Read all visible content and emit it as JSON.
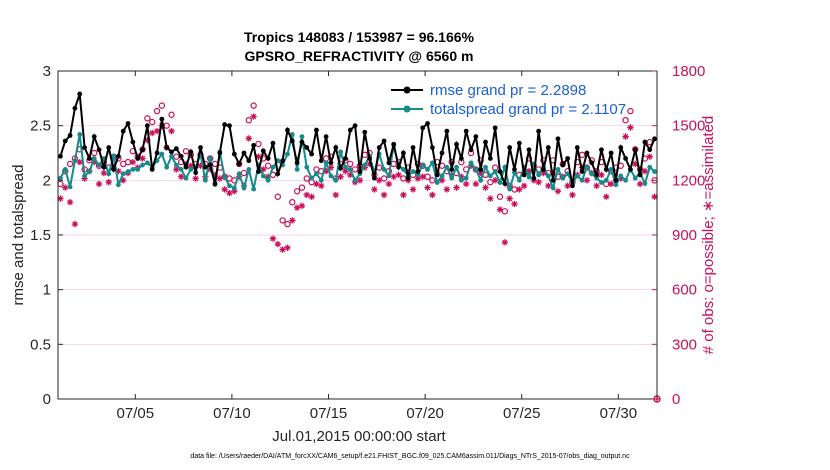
{
  "chart_data": {
    "type": "line",
    "title_line1": "Tropics 148083 / 153987 = 96.166%",
    "title_line2": "GPSRO_REFRACTIVITY @ 6560 m",
    "xlabel": "Jul.01,2015 00:00:00 start",
    "ylabel_left": "rmse and totalspread",
    "ylabel_right": "# of obs: o=possible; ∗=assimilated",
    "xlim": [
      1,
      32
    ],
    "ylim_left": [
      0,
      3
    ],
    "ylim_right": [
      0,
      1800
    ],
    "x_ticks": [
      {
        "value": 5,
        "label": "07/05"
      },
      {
        "value": 10,
        "label": "07/10"
      },
      {
        "value": 15,
        "label": "07/15"
      },
      {
        "value": 20,
        "label": "07/20"
      },
      {
        "value": 25,
        "label": "07/25"
      },
      {
        "value": 30,
        "label": "07/30"
      }
    ],
    "y_ticks_left": [
      "0",
      "0.5",
      "1",
      "1.5",
      "2",
      "2.5",
      "3"
    ],
    "y_ticks_right": [
      "0",
      "300",
      "600",
      "900",
      "1200",
      "1500",
      "1800"
    ],
    "legend": [
      {
        "name": "rmse grand pr = 2.2898",
        "color": "#000000"
      },
      {
        "name": "totalspread grand pr = 2.1107",
        "color": "#158c8c"
      }
    ],
    "footnote": "data file: /Users/raeder/DAI/ATM_forcXX/CAM6_setup/f.e21.FHIST_BGC.f09_025.CAM6assim.011/Diags_NTrS_2015-07/obs_diag_output.nc",
    "series": {
      "time": [
        1.125,
        1.375,
        1.625,
        1.875,
        2.125,
        2.375,
        2.625,
        2.875,
        3.125,
        3.375,
        3.625,
        3.875,
        4.125,
        4.375,
        4.625,
        4.875,
        5.125,
        5.375,
        5.625,
        5.875,
        6.125,
        6.375,
        6.625,
        6.875,
        7.125,
        7.375,
        7.625,
        7.875,
        8.125,
        8.375,
        8.625,
        8.875,
        9.125,
        9.375,
        9.625,
        9.875,
        10.125,
        10.375,
        10.625,
        10.875,
        11.125,
        11.375,
        11.625,
        11.875,
        12.125,
        12.375,
        12.625,
        12.875,
        13.125,
        13.375,
        13.625,
        13.875,
        14.125,
        14.375,
        14.625,
        14.875,
        15.125,
        15.375,
        15.625,
        15.875,
        16.125,
        16.375,
        16.625,
        16.875,
        17.125,
        17.375,
        17.625,
        17.875,
        18.125,
        18.375,
        18.625,
        18.875,
        19.125,
        19.375,
        19.625,
        19.875,
        20.125,
        20.375,
        20.625,
        20.875,
        21.125,
        21.375,
        21.625,
        21.875,
        22.125,
        22.375,
        22.625,
        22.875,
        23.125,
        23.375,
        23.625,
        23.875,
        24.125,
        24.375,
        24.625,
        24.875,
        25.125,
        25.375,
        25.625,
        25.875,
        26.125,
        26.375,
        26.625,
        26.875,
        27.125,
        27.375,
        27.625,
        27.875,
        28.125,
        28.375,
        28.625,
        28.875,
        29.125,
        29.375,
        29.625,
        29.875,
        30.125,
        30.375,
        30.625,
        30.875,
        31.125,
        31.375,
        31.625,
        31.875
      ],
      "rmse": [
        2.22,
        2.36,
        2.41,
        2.66,
        2.79,
        2.3,
        2.2,
        2.4,
        2.28,
        2.12,
        2.3,
        2.1,
        2.22,
        2.45,
        2.52,
        2.35,
        2.2,
        2.28,
        2.5,
        2.1,
        2.25,
        2.56,
        2.3,
        2.26,
        2.29,
        2.22,
        2.12,
        2.26,
        2.07,
        2.3,
        2.12,
        2.14,
        1.97,
        2.25,
        2.51,
        2.5,
        2.24,
        2.15,
        2.25,
        2.18,
        2.32,
        2.08,
        2.27,
        2.2,
        2.34,
        2.06,
        2.18,
        2.46,
        2.36,
        2.16,
        2.35,
        2.3,
        2.24,
        2.46,
        2.18,
        2.4,
        2.16,
        2.3,
        2.11,
        2.2,
        2.46,
        2.5,
        2.08,
        2.44,
        2.2,
        2.02,
        2.3,
        2.36,
        2.16,
        2.33,
        2.12,
        2.25,
        2.02,
        2.3,
        2.08,
        2.48,
        2.52,
        2.3,
        2.05,
        2.25,
        2.45,
        2.1,
        2.33,
        2.2,
        2.45,
        2.28,
        2.4,
        2.1,
        2.35,
        2.2,
        2.48,
        2.08,
        1.97,
        2.3,
        2.1,
        2.34,
        2.05,
        2.28,
        2.02,
        2.45,
        2.1,
        2.3,
        2.0,
        2.38,
        2.14,
        2.2,
        1.95,
        2.3,
        2.08,
        2.25,
        2.16,
        2.05,
        2.28,
        2.1,
        2.25,
        2.0,
        2.3,
        2.2,
        2.1,
        2.28,
        2.05,
        2.35,
        2.28,
        2.38,
        2.24,
        2.3
      ],
      "spread": [
        2.02,
        2.1,
        1.94,
        2.18,
        2.42,
        2.04,
        2.08,
        2.2,
        2.14,
        2.2,
        2.06,
        2.22,
        1.96,
        2.06,
        2.08,
        2.1,
        2.1,
        2.14,
        2.16,
        2.12,
        2.18,
        2.24,
        2.12,
        2.22,
        2.14,
        2.1,
        2.02,
        2.1,
        2.12,
        2.24,
        2.0,
        2.2,
        1.96,
        2.26,
        2.03,
        1.95,
        1.93,
        2.06,
        1.93,
        2.1,
        1.92,
        2.14,
        2.04,
        2.0,
        2.12,
        2.18,
        2.14,
        2.24,
        2.42,
        2.1,
        2.4,
        2.12,
        2.02,
        2.06,
        2.0,
        2.16,
        2.04,
        2.0,
        2.26,
        2.12,
        2.1,
        2.0,
        2.06,
        2.14,
        2.22,
        2.07,
        2.24,
        2.1,
        2.04,
        2.32,
        2.14,
        2.1,
        2.04,
        2.08,
        2.05,
        2.14,
        2.1,
        2.16,
        1.98,
        2.04,
        2.12,
        2.02,
        2.12,
        2.0,
        2.02,
        2.16,
        2.1,
        2.0,
        2.12,
        2.04,
        2.08,
        1.98,
        2.12,
        1.92,
        2.07,
        2.0,
        2.12,
        2.03,
        2.15,
        2.05,
        2.12,
        2.04,
        1.93,
        2.1,
        2.02,
        2.06,
        1.98,
        2.04,
        2.0,
        2.12,
        2.06,
        2.02,
        1.98,
        2.0,
        2.1,
        1.96,
        2.04,
        2.0,
        2.1,
        2.02,
        2.07,
        1.97,
        2.12,
        2.08,
        1.98,
        1.96
      ],
      "obs_possible": [
        1180,
        1250,
        1290,
        1320,
        1370,
        1260,
        1310,
        1350,
        1280,
        1300,
        1270,
        1330,
        1320,
        1290,
        1300,
        1360,
        1330,
        1370,
        1540,
        1520,
        1580,
        1610,
        1500,
        1560,
        1330,
        1300,
        1360,
        1340,
        1290,
        1340,
        1290,
        1320,
        1290,
        1270,
        1220,
        1210,
        1200,
        1290,
        1240,
        1530,
        1610,
        1400,
        1320,
        1280,
        1230,
        1110,
        980,
        960,
        1080,
        1140,
        1160,
        1210,
        1190,
        1260,
        1250,
        1320,
        1330,
        1210,
        1290,
        1310,
        1290,
        1260,
        1280,
        1340,
        1350,
        1230,
        1270,
        1210,
        1250,
        1290,
        1300,
        1210,
        1270,
        1230,
        1290,
        1280,
        1220,
        1200,
        1300,
        1280,
        1250,
        1300,
        1240,
        1300,
        1260,
        1350,
        1260,
        1310,
        1230,
        1190,
        1270,
        1110,
        1030,
        1170,
        1150,
        1230,
        1240,
        1320,
        1280,
        1260,
        1310,
        1240,
        1310,
        1220,
        1290,
        1250,
        1190,
        1300,
        1340,
        1270,
        1310,
        1250,
        1300,
        1180,
        1250,
        1270,
        1280,
        1530,
        1580,
        1370,
        1260,
        1320,
        1410,
        1200,
        1300,
        1330
      ],
      "obs_assimilated": [
        1100,
        1160,
        1080,
        960,
        1300,
        1210,
        1250,
        1300,
        1180,
        1240,
        1190,
        1270,
        1250,
        1200,
        1240,
        1300,
        1270,
        1320,
        1420,
        1460,
        1470,
        1500,
        1380,
        1470,
        1260,
        1220,
        1290,
        1280,
        1210,
        1280,
        1220,
        1260,
        1230,
        1210,
        1150,
        1130,
        1140,
        1220,
        1170,
        1430,
        1550,
        1330,
        1260,
        1220,
        880,
        850,
        820,
        830,
        980,
        1050,
        1060,
        1120,
        1110,
        1180,
        1170,
        1250,
        1270,
        1120,
        1220,
        1250,
        1230,
        1190,
        1200,
        1270,
        1290,
        1150,
        1200,
        1120,
        1180,
        1220,
        1230,
        1120,
        1200,
        1150,
        1210,
        1220,
        1160,
        1120,
        1240,
        1200,
        1150,
        1230,
        1160,
        1220,
        1180,
        1280,
        1180,
        1240,
        1160,
        1100,
        1200,
        1040,
        860,
        1100,
        1070,
        1150,
        1170,
        1250,
        1200,
        1190,
        1240,
        1170,
        1240,
        1140,
        1220,
        1170,
        1120,
        1230,
        1270,
        1200,
        1240,
        1170,
        1230,
        1110,
        1180,
        1200,
        1210,
        1440,
        1490,
        1290,
        1180,
        1250,
        1330,
        1110,
        1220,
        1250
      ]
    }
  }
}
